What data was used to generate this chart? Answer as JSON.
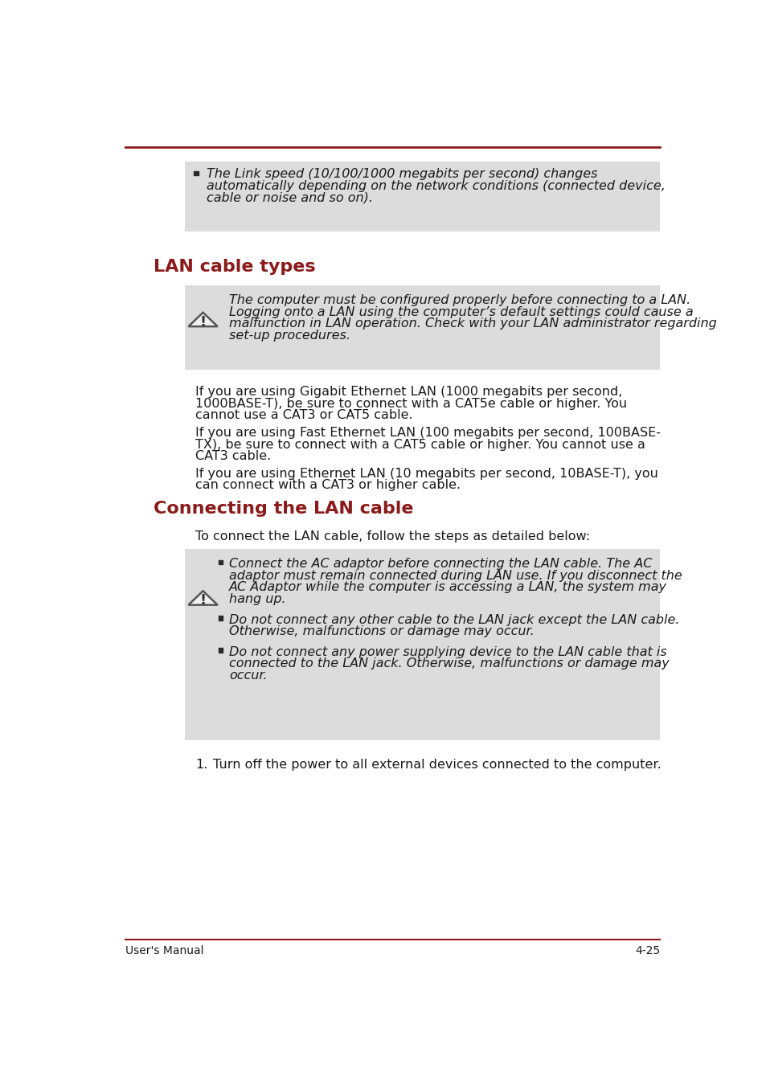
{
  "bg_color": "#ffffff",
  "top_line_color": "#8b1a1a",
  "heading_color": "#8b1a1a",
  "text_color": "#1a1a1a",
  "gray_bg_color": "#dcdcdc",
  "footer_line_color": "#8b1a1a",
  "footer_text_left": "User's Manual",
  "footer_text_right": "4-25",
  "top_bullet_line1": "The Link speed (10/100/1000 megabits per second) changes",
  "top_bullet_line2": "automatically depending on the network conditions (connected device,",
  "top_bullet_line3": "cable or noise and so on).",
  "section1_heading": "LAN cable types",
  "warn1_line1": "The computer must be configured properly before connecting to a LAN.",
  "warn1_line2": "Logging onto a LAN using the computer’s default settings could cause a",
  "warn1_line3": "malfunction in LAN operation. Check with your LAN administrator regarding",
  "warn1_line4": "set-up procedures.",
  "para1_line1": "If you are using Gigabit Ethernet LAN (1000 megabits per second,",
  "para1_line2": "1000BASE-T), be sure to connect with a CAT5e cable or higher. You",
  "para1_line3": "cannot use a CAT3 or CAT5 cable.",
  "para2_line1": "If you are using Fast Ethernet LAN (100 megabits per second, 100BASE-",
  "para2_line2": "TX), be sure to connect with a CAT5 cable or higher. You cannot use a",
  "para2_line3": "CAT3 cable.",
  "para3_line1": "If you are using Ethernet LAN (10 megabits per second, 10BASE-T), you",
  "para3_line2": "can connect with a CAT3 or higher cable.",
  "section2_heading": "Connecting the LAN cable",
  "section2_intro": "To connect the LAN cable, follow the steps as detailed below:",
  "b1_line1": "Connect the AC adaptor before connecting the LAN cable. The AC",
  "b1_line2": "adaptor must remain connected during LAN use. If you disconnect the",
  "b1_line3": "AC Adaptor while the computer is accessing a LAN, the system may",
  "b1_line4": "hang up.",
  "b2_line1": "Do not connect any other cable to the LAN jack except the LAN cable.",
  "b2_line2": "Otherwise, malfunctions or damage may occur.",
  "b3_line1": "Do not connect any power supplying device to the LAN cable that is",
  "b3_line2": "connected to the LAN jack. Otherwise, malfunctions or damage may",
  "b3_line3": "occur.",
  "step1_num": "1.",
  "step1_text": "Turn off the power to all external devices connected to the computer."
}
